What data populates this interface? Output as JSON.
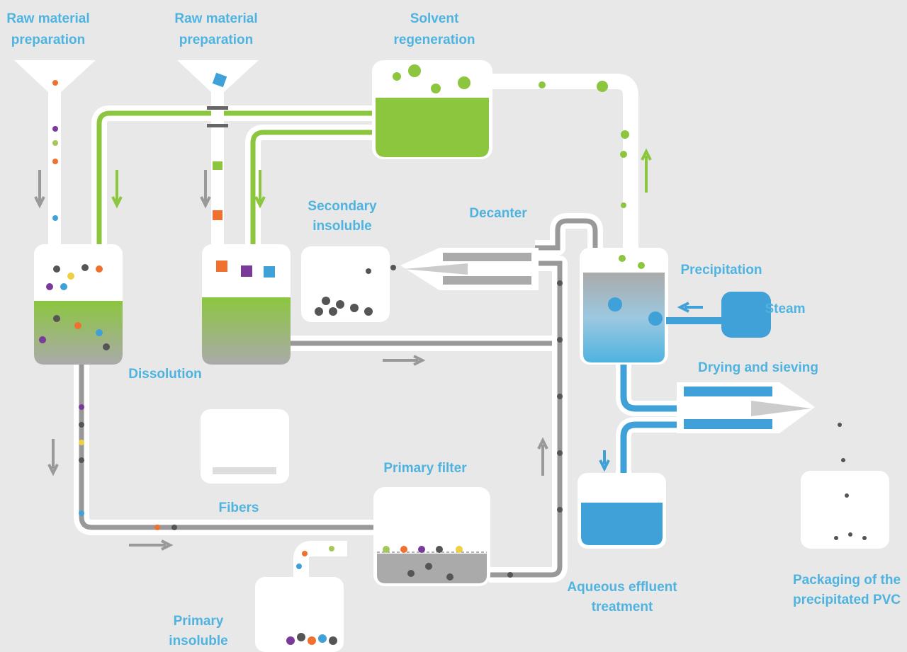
{
  "nodes": [
    {
      "lines": [
        "Raw material",
        "preparation"
      ]
    },
    {
      "lines": [
        "Raw material",
        "preparation"
      ]
    },
    {
      "lines": [
        "Solvent",
        "regeneration"
      ]
    },
    {
      "lines": [
        "Secondary",
        "insoluble"
      ]
    },
    {
      "lines": [
        "Decanter"
      ]
    },
    {
      "lines": [
        "Precipitation"
      ]
    },
    {
      "lines": [
        "Steam"
      ]
    },
    {
      "lines": [
        "Dissolution"
      ]
    },
    {
      "lines": [
        "Drying and sieving"
      ]
    },
    {
      "lines": [
        "Primary filter"
      ]
    },
    {
      "lines": [
        "Fibers"
      ]
    },
    {
      "lines": [
        "Aqueous effluent",
        "treatment"
      ]
    },
    {
      "lines": [
        "Packaging of the",
        "precipitated PVC"
      ]
    },
    {
      "lines": [
        "Primary",
        "insoluble"
      ]
    }
  ]
}
